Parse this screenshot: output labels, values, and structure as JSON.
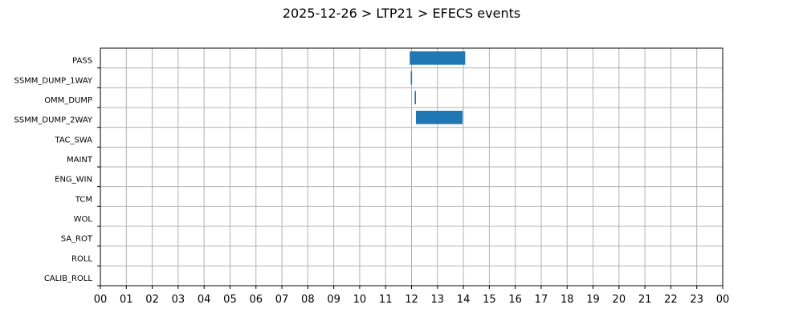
{
  "chart_data": {
    "type": "bar",
    "orientation": "horizontal-timeline",
    "title": "2025-12-26 > LTP21 > EFECS events",
    "xlabel": "",
    "ylabel": "",
    "xlim": [
      0,
      24
    ],
    "x_ticks": [
      0,
      1,
      2,
      3,
      4,
      5,
      6,
      7,
      8,
      9,
      10,
      11,
      12,
      13,
      14,
      15,
      16,
      17,
      18,
      19,
      20,
      21,
      22,
      23,
      24
    ],
    "x_tick_labels": [
      "00",
      "01",
      "02",
      "03",
      "04",
      "05",
      "06",
      "07",
      "08",
      "09",
      "10",
      "11",
      "12",
      "13",
      "14",
      "15",
      "16",
      "17",
      "18",
      "19",
      "20",
      "21",
      "22",
      "23",
      "00"
    ],
    "categories": [
      "PASS",
      "SSMM_DUMP_1WAY",
      "OMM_DUMP",
      "SSMM_DUMP_2WAY",
      "TAC_SWA",
      "MAINT",
      "ENG_WIN",
      "TCM",
      "WOL",
      "SA_ROT",
      "ROLL",
      "CALIB_ROLL"
    ],
    "grid": true,
    "bar_color": "#1f77b4",
    "events": [
      {
        "category": "PASS",
        "start": 11.93,
        "end": 14.07
      },
      {
        "category": "SSMM_DUMP_1WAY",
        "start": 11.97,
        "end": 12.02
      },
      {
        "category": "OMM_DUMP",
        "start": 12.12,
        "end": 12.17
      },
      {
        "category": "SSMM_DUMP_2WAY",
        "start": 12.17,
        "end": 13.97
      }
    ]
  }
}
